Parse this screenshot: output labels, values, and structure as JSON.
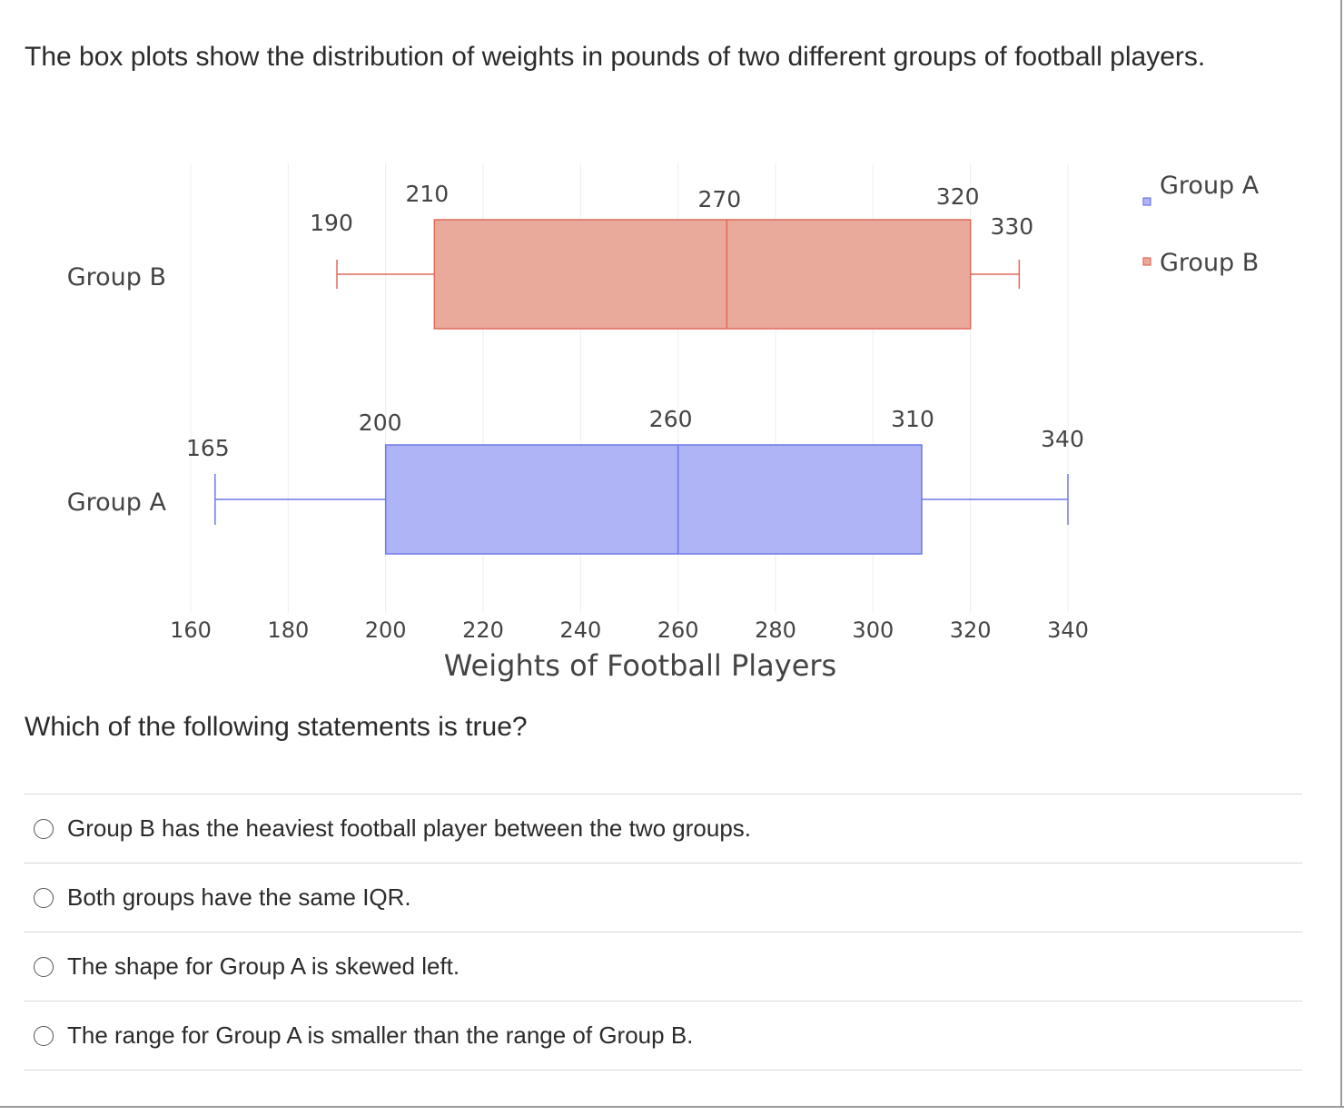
{
  "question": "The box plots show the distribution of weights in pounds of two different groups of football players.",
  "prompt": "Which of the following statements is true?",
  "options": [
    "Group B has the heaviest football player between the two groups.",
    "Both groups have the same IQR.",
    "The shape for Group A is skewed left.",
    "The range for Group A is smaller than the range of Group B."
  ],
  "chart_data": {
    "type": "box",
    "orientation": "horizontal",
    "xlabel": "Weights of Football Players",
    "xlim": [
      155,
      350
    ],
    "xticks": [
      160,
      180,
      200,
      220,
      240,
      260,
      280,
      300,
      320,
      340
    ],
    "grid": true,
    "legend_position": "top-right",
    "series": [
      {
        "name": "Group B",
        "min": 190,
        "q1": 210,
        "median": 270,
        "q3": 320,
        "max": 330,
        "fill": "#e9a99b",
        "stroke": "#e06a5a"
      },
      {
        "name": "Group A",
        "min": 165,
        "q1": 200,
        "median": 260,
        "q3": 310,
        "max": 340,
        "fill": "#aeb4f5",
        "stroke": "#6e78ea"
      }
    ],
    "legend": [
      "Group A",
      "Group B"
    ]
  }
}
